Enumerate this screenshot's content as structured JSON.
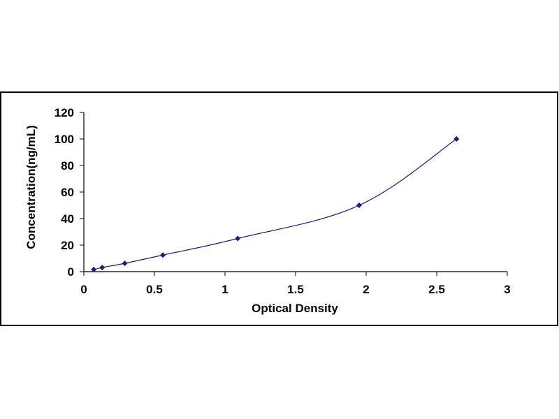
{
  "chart_data": {
    "type": "scatter",
    "title": "",
    "xlabel": "Optical Density",
    "ylabel": "Concentration(ng/mL)",
    "xlim": [
      0,
      3
    ],
    "ylim": [
      0,
      120
    ],
    "xticks": [
      0,
      0.5,
      1,
      1.5,
      2,
      2.5,
      3
    ],
    "xtick_labels": [
      "0",
      "0.5",
      "1",
      "1.5",
      "2",
      "2.5",
      "3"
    ],
    "yticks": [
      0,
      20,
      40,
      60,
      80,
      100,
      120
    ],
    "ytick_labels": [
      "0",
      "20",
      "40",
      "60",
      "80",
      "100",
      "120"
    ],
    "grid": false,
    "legend": "none",
    "series": [
      {
        "x": [
          0.07,
          0.13,
          0.29,
          0.56,
          1.09,
          1.95,
          2.64
        ],
        "y": [
          1.56,
          3.12,
          6.25,
          12.5,
          25,
          50,
          100
        ],
        "marker": "diamond",
        "smooth_line": true
      }
    ],
    "colors": {
      "marker": "#1a1f6e",
      "line": "#1a1f6e",
      "axis": "#000000",
      "frame": "#000000"
    }
  }
}
